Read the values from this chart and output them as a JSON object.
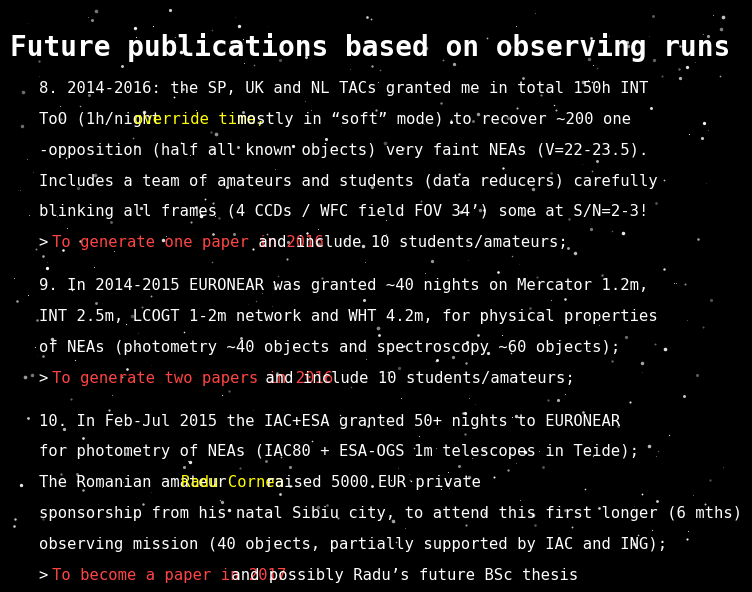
{
  "title": "Future publications based on observing runs",
  "title_color": "#ffffff",
  "title_fontsize": 20,
  "background_color": "#000000",
  "text_color": "#ffffff",
  "highlight_yellow": "#ffff00",
  "highlight_red": "#ff4444",
  "body_fontsize": 11.2,
  "para1_lines": [
    "8. 2014-2016: the SP, UK and NL TACs granted me in total 150h INT",
    "ToO (1h/night override time, mostly in “soft” mode) to recover ~200 one",
    "-opposition (half all known objects) very faint NEAs (V=22-23.5).",
    "Includes a team of amateurs and students (data reducers) carefully",
    "blinking all frames (4 CCDs / WFC field FOV 34’) some at S/N=2-3!"
  ],
  "para2_lines": [
    "9. In 2014-2015 EURONEAR was granted ~40 nights on Mercator 1.2m,",
    "INT 2.5m, LCOGT 1-2m network and WHT 4.2m, for physical properties",
    "of NEAs (photometry ~40 objects and spectroscopy ~60 objects);"
  ],
  "para3_lines": [
    "10. In Feb-Jul 2015 the IAC+ESA granted 50+ nights to EURONEAR",
    "for photometry of NEAs (IAC80 + ESA-OGS 1m telescopes in Teide);",
    "The Romanian amateur Radu Cornea raised 5000 EUR private",
    "sponsorship from his natal Sibiu city, to attend this first longer (6 mths)",
    "observing mission (40 objects, partially supported by IAC and ING);"
  ]
}
